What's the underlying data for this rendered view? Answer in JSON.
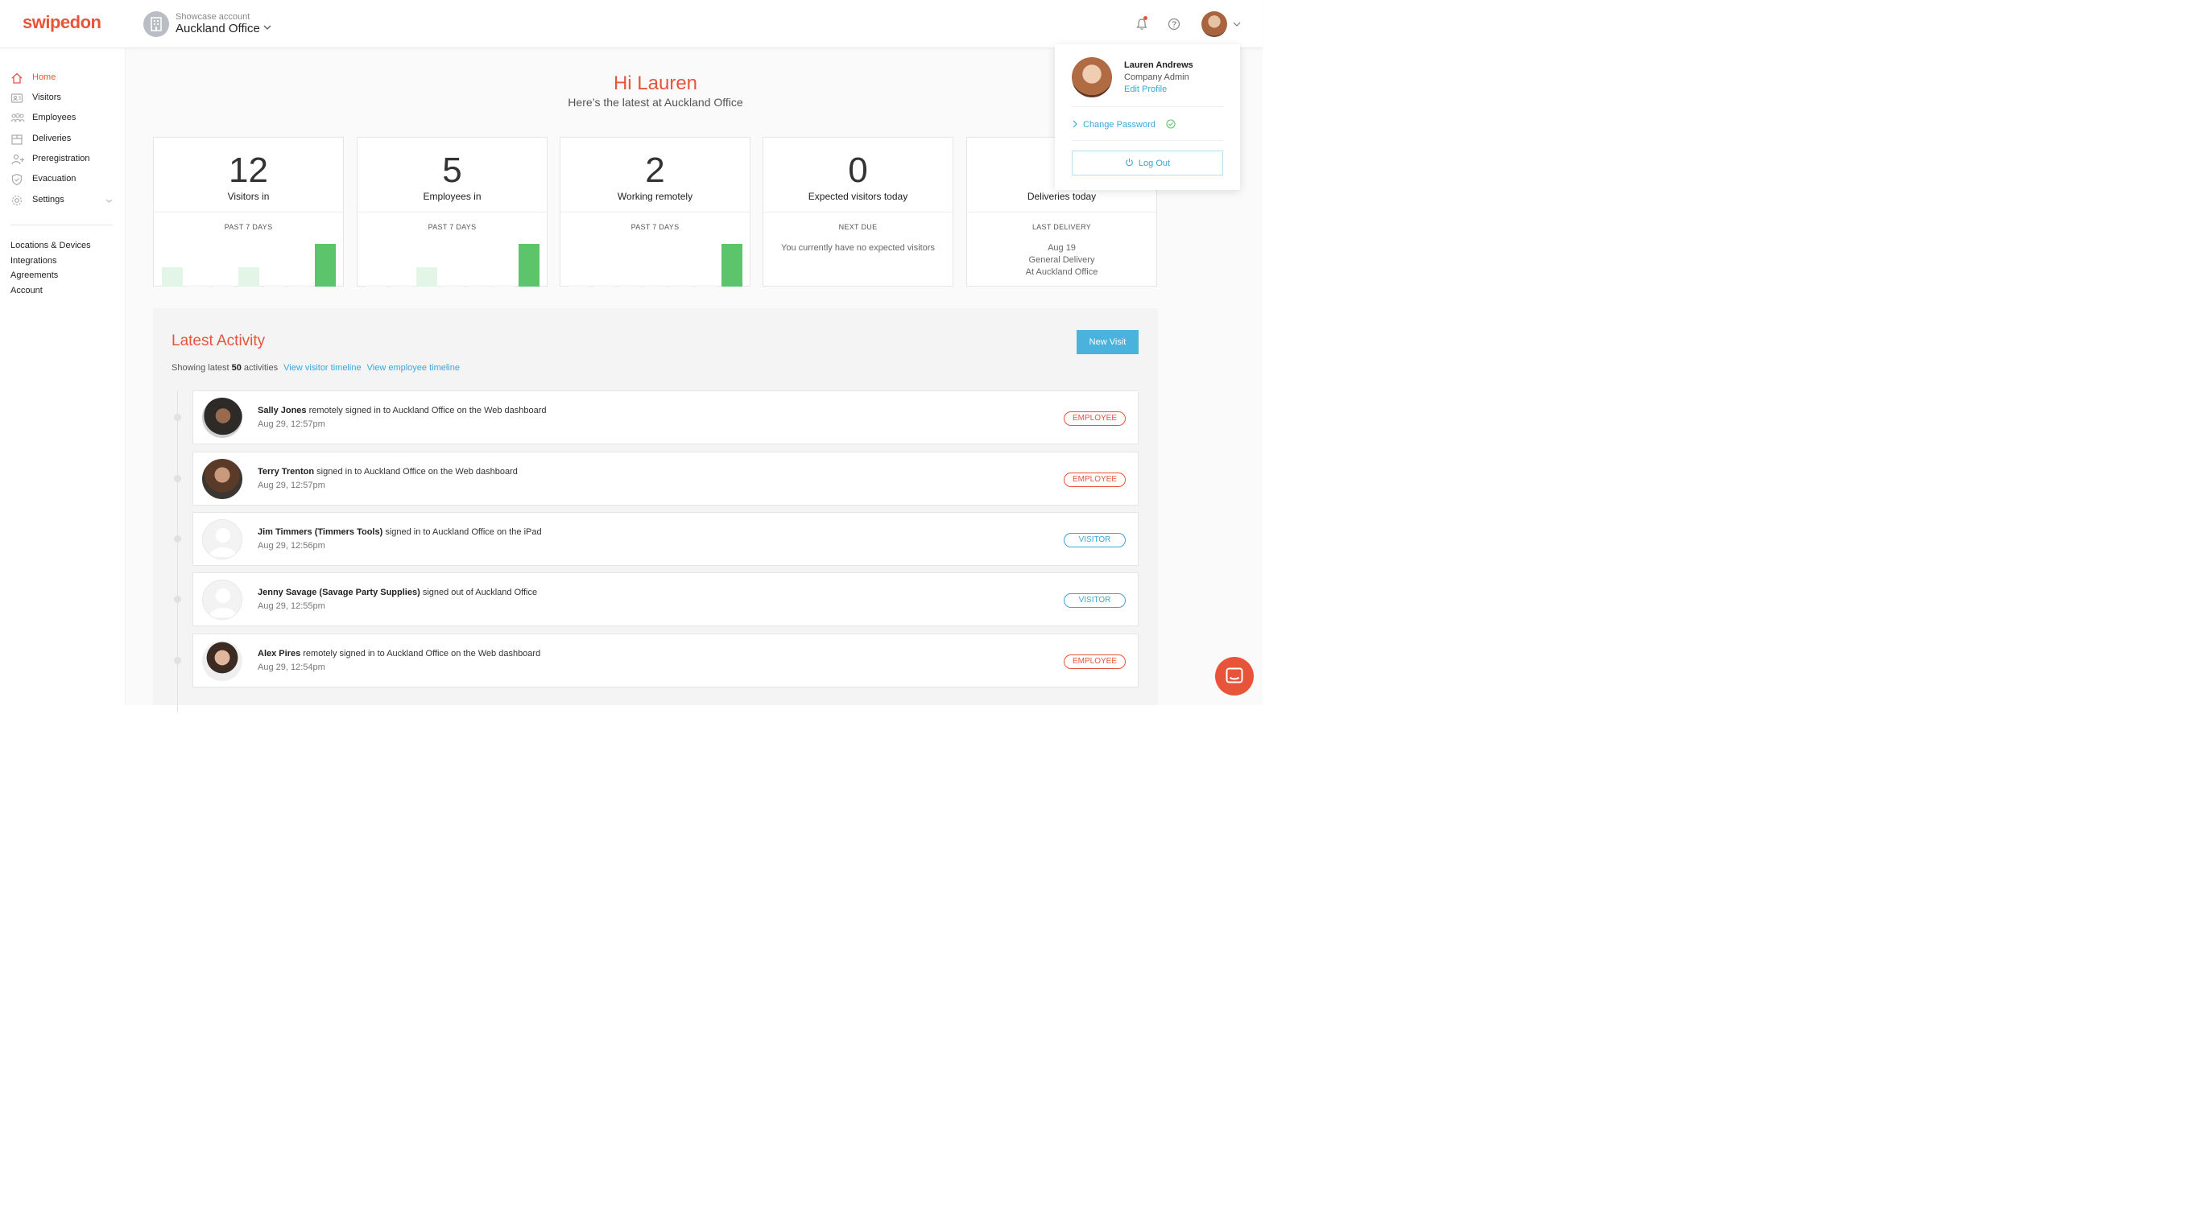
{
  "header": {
    "logo": "swipedon",
    "account_label": "Showcase account",
    "account_name": "Auckland Office"
  },
  "sidebar": {
    "nav": [
      {
        "label": "Home",
        "icon": "home-icon",
        "active": true
      },
      {
        "label": "Visitors",
        "icon": "visitors-icon"
      },
      {
        "label": "Employees",
        "icon": "employees-icon"
      },
      {
        "label": "Deliveries",
        "icon": "deliveries-icon"
      },
      {
        "label": "Preregistration",
        "icon": "preregistration-icon"
      },
      {
        "label": "Evacuation",
        "icon": "shield-icon"
      },
      {
        "label": "Settings",
        "icon": "gear-icon"
      }
    ],
    "links": [
      "Locations & Devices",
      "Integrations",
      "Agreements",
      "Account"
    ]
  },
  "greeting": {
    "title": "Hi Lauren",
    "subtitle": "Here’s the latest at Auckland Office"
  },
  "cards": [
    {
      "value": "12",
      "title": "Visitors in",
      "label": "PAST 7 DAYS",
      "bars": [
        0.45,
        0,
        0,
        0.45,
        0,
        0,
        1
      ]
    },
    {
      "value": "5",
      "title": "Employees in",
      "label": "PAST 7 DAYS",
      "bars": [
        0,
        0,
        0.45,
        0,
        0,
        0,
        1
      ]
    },
    {
      "value": "2",
      "title": "Working remotely",
      "label": "PAST 7 DAYS",
      "bars": [
        0,
        0,
        0,
        0,
        0,
        0,
        1
      ]
    },
    {
      "value": "0",
      "title": "Expected visitors today",
      "label": "NEXT DUE",
      "text": [
        "You currently have no expected visitors"
      ]
    },
    {
      "value": "",
      "title": "Deliveries today",
      "label": "LAST DELIVERY",
      "text": [
        "Aug 19",
        "General Delivery",
        "At Auckland Office"
      ]
    }
  ],
  "activity": {
    "title": "Latest Activity",
    "showing_prefix": "Showing latest",
    "showing_count": "50",
    "showing_suffix": "activities",
    "link_visitor": "View visitor timeline",
    "link_employee": "View employee timeline",
    "new_visit": "New Visit",
    "rows": [
      {
        "name": "Sally Jones",
        "action": " remotely signed in to Auckland Office on the Web dashboard",
        "time": "Aug 29, 12:57pm",
        "badge": "EMPLOYEE",
        "kind": "emp",
        "avatar": "photo-1"
      },
      {
        "name": "Terry Trenton",
        "action": " signed in to Auckland Office on the Web dashboard",
        "time": "Aug 29, 12:57pm",
        "badge": "EMPLOYEE",
        "kind": "emp",
        "avatar": "photo-2"
      },
      {
        "name": "Jim Timmers (Timmers Tools)",
        "action": " signed in to Auckland Office on the iPad",
        "time": "Aug 29, 12:56pm",
        "badge": "VISITOR",
        "kind": "vis",
        "avatar": "placeholder"
      },
      {
        "name": "Jenny Savage (Savage Party Supplies)",
        "action": " signed out of Auckland Office",
        "time": "Aug 29, 12:55pm",
        "badge": "VISITOR",
        "kind": "vis",
        "avatar": "placeholder"
      },
      {
        "name": "Alex Pires",
        "action": " remotely signed in to Auckland Office on the Web dashboard",
        "time": "Aug 29, 12:54pm",
        "badge": "EMPLOYEE",
        "kind": "emp",
        "avatar": "photo-3"
      }
    ]
  },
  "profile_menu": {
    "name": "Lauren Andrews",
    "role": "Company Admin",
    "edit": "Edit Profile",
    "change_password": "Change Password",
    "logout": "Log Out"
  },
  "colors": {
    "brand": "#e8543a",
    "link": "#3aa6d6",
    "bar_full": "#5cc56b",
    "bar_light": "#e3f5e6"
  }
}
